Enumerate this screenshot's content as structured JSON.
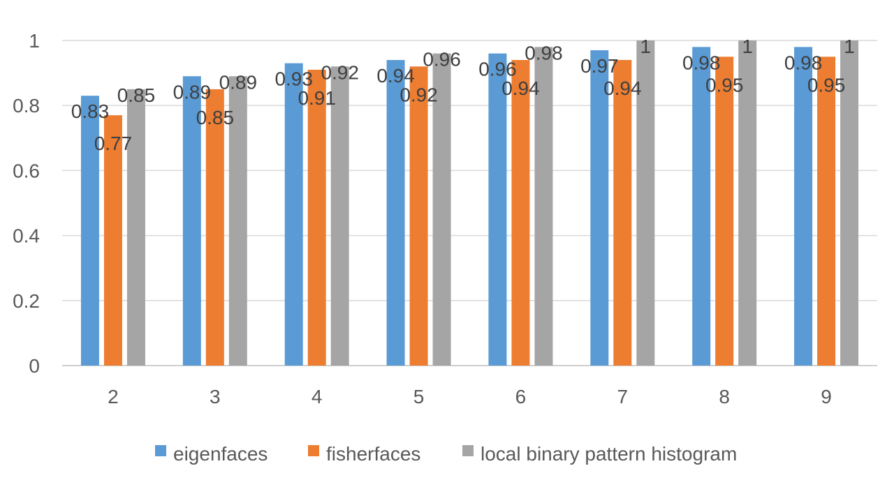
{
  "chart_data": {
    "type": "bar",
    "title": "",
    "xlabel": "",
    "ylabel": "",
    "categories": [
      "2",
      "3",
      "4",
      "5",
      "6",
      "7",
      "8",
      "9"
    ],
    "ylim": [
      0,
      1
    ],
    "yticks": [
      "0",
      "0.2",
      "0.4",
      "0.6",
      "0.8",
      "1"
    ],
    "grid": true,
    "legend_position": "bottom",
    "series": [
      {
        "name": "eigenfaces",
        "color": "#5B9BD5",
        "values": [
          0.83,
          0.89,
          0.93,
          0.94,
          0.96,
          0.97,
          0.98,
          0.98
        ],
        "labels": [
          "0.83",
          "0.89",
          "0.93",
          "0.94",
          "0.96",
          "0.97",
          "0.98",
          "0.98"
        ]
      },
      {
        "name": "fisherfaces",
        "color": "#ED7D31",
        "values": [
          0.77,
          0.85,
          0.91,
          0.92,
          0.94,
          0.94,
          0.95,
          0.95
        ],
        "labels": [
          "0.77",
          "0.85",
          "0.91",
          "0.92",
          "0.94",
          "0.94",
          "0.95",
          "0.95"
        ]
      },
      {
        "name": "local binary pattern histogram",
        "color": "#A5A5A5",
        "values": [
          0.85,
          0.89,
          0.92,
          0.96,
          0.98,
          1,
          1,
          1
        ],
        "labels": [
          "0.85",
          "0.89",
          "0.92",
          "0.96",
          "0.98",
          "1",
          "1",
          "1"
        ]
      }
    ]
  }
}
